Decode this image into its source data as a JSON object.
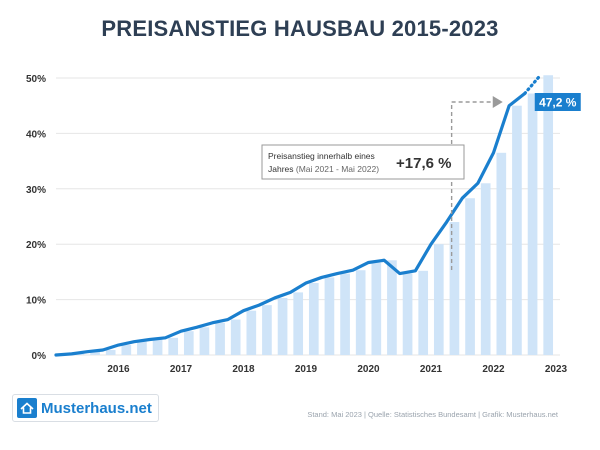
{
  "title": "PREISANSTIEG HAUSBAU 2015-2023",
  "logo": {
    "name": "Musterhaus.net",
    "icon": "house-icon"
  },
  "source": "Stand: Mai 2023 | Quelle: Statistisches Bundesamt | Grafik: Musterhaus.net",
  "colors": {
    "line": "#1a7fce",
    "bar": "#cfe4f8",
    "grid": "#e6e6e6",
    "label_bg": "#1a7fce",
    "title": "#2e3f54"
  },
  "chart_data": {
    "type": "line",
    "grid": true,
    "ylim": [
      0,
      50
    ],
    "y_ticks": [
      {
        "value": 0,
        "label": "0%"
      },
      {
        "value": 10,
        "label": "10%"
      },
      {
        "value": 20,
        "label": "20%"
      },
      {
        "value": 30,
        "label": "30%"
      },
      {
        "value": 40,
        "label": "40%"
      },
      {
        "value": 50,
        "label": "50%"
      }
    ],
    "x_ticks": [
      "2016",
      "2017",
      "2018",
      "2019",
      "2020",
      "2021",
      "2022",
      "2023"
    ],
    "xlim": [
      2015.0,
      2023.0
    ],
    "series": [
      {
        "type": "line+bar",
        "x": [
          2015.0,
          2015.25,
          2015.5,
          2015.75,
          2016.0,
          2016.25,
          2016.5,
          2016.75,
          2017.0,
          2017.25,
          2017.5,
          2017.75,
          2018.0,
          2018.25,
          2018.5,
          2018.75,
          2019.0,
          2019.25,
          2019.5,
          2019.75,
          2020.0,
          2020.25,
          2020.5,
          2020.75,
          2021.0,
          2021.25,
          2021.5,
          2021.75,
          2022.0,
          2022.25,
          2022.5,
          2022.75
        ],
        "values": [
          0.0,
          0.2,
          0.6,
          0.9,
          1.8,
          2.4,
          2.8,
          3.1,
          4.3,
          5.0,
          5.8,
          6.4,
          8.0,
          9.0,
          10.3,
          11.3,
          13.0,
          14.0,
          14.7,
          15.3,
          16.7,
          17.1,
          14.7,
          15.2,
          20.0,
          24.0,
          28.3,
          31.0,
          36.5,
          45.0,
          47.2,
          50.5
        ]
      }
    ],
    "annotations": [
      {
        "text": "47,2 %",
        "x": 2022.5,
        "y": 47.2
      },
      {
        "lines": [
          "Preisanstieg innerhalb eines",
          "Jahres"
        ],
        "sub": "(Mai 2021 - Mai 2022)",
        "value": "+17,6 %"
      }
    ]
  }
}
